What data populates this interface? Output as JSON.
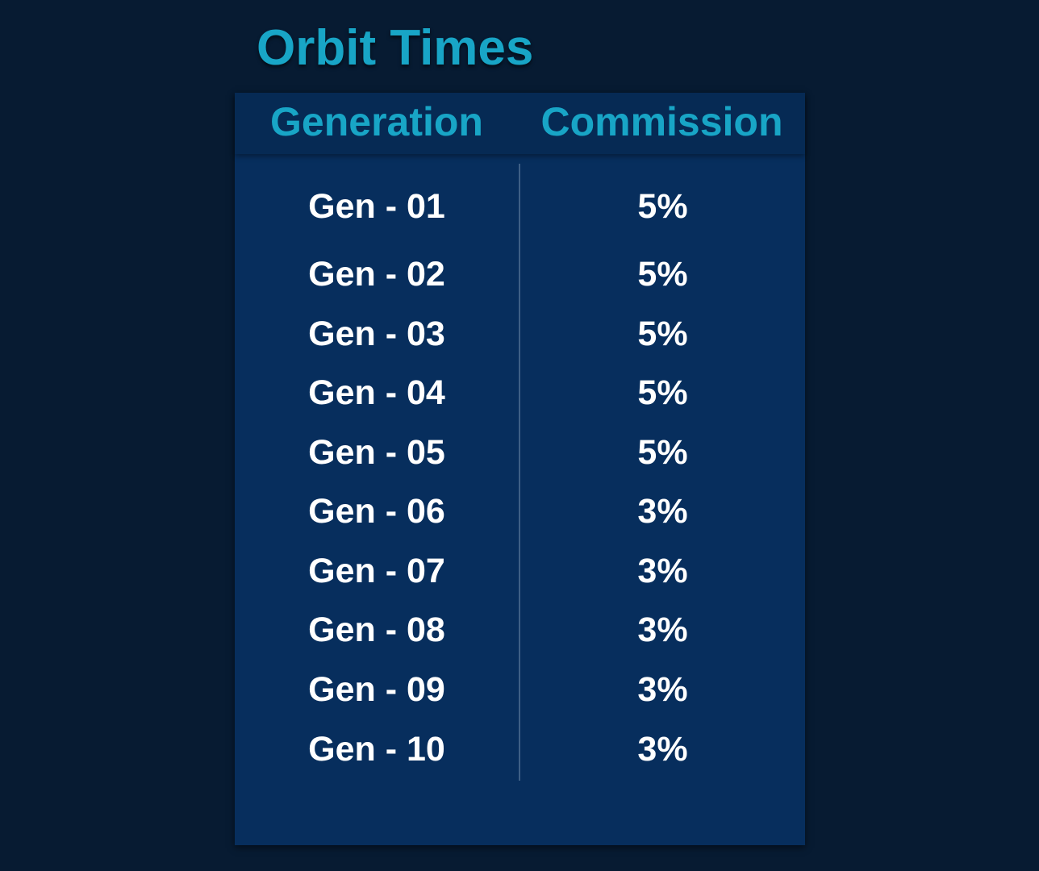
{
  "title": "Orbit Times",
  "table": {
    "headers": {
      "generation": "Generation",
      "commission": "Commission"
    },
    "rows": [
      {
        "generation": "Gen - 01",
        "commission": "5%"
      },
      {
        "generation": "Gen - 02",
        "commission": "5%"
      },
      {
        "generation": "Gen - 03",
        "commission": "5%"
      },
      {
        "generation": "Gen - 04",
        "commission": "5%"
      },
      {
        "generation": "Gen - 05",
        "commission": "5%"
      },
      {
        "generation": "Gen - 06",
        "commission": "3%"
      },
      {
        "generation": "Gen - 07",
        "commission": "3%"
      },
      {
        "generation": "Gen - 08",
        "commission": "3%"
      },
      {
        "generation": "Gen - 09",
        "commission": "3%"
      },
      {
        "generation": "Gen - 10",
        "commission": "3%"
      }
    ]
  },
  "colors": {
    "background": "#071b32",
    "panel": "#072e5d",
    "header": "#062a54",
    "accent": "#18a5c6",
    "text": "#ffffff"
  }
}
